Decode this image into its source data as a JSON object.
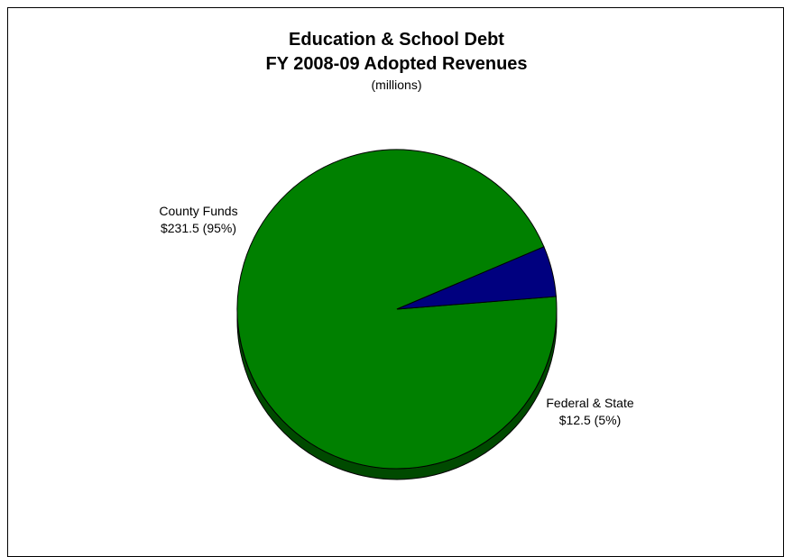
{
  "chart_data": {
    "type": "pie",
    "title": [
      "Education & School Debt",
      "FY 2008-09 Adopted Revenues"
    ],
    "subtitle": "(millions)",
    "slices": [
      {
        "name": "County Funds",
        "value": 231.5,
        "percent": 95,
        "value_label": "$231.5 (95%)",
        "color": "#008000",
        "side_color": "#004a00"
      },
      {
        "name": "Federal & State",
        "value": 12.5,
        "percent": 5,
        "value_label": "$12.5 (5%)",
        "color": "#00007f",
        "side_color": "#00004a"
      }
    ],
    "style": "3d",
    "legend": "none"
  }
}
